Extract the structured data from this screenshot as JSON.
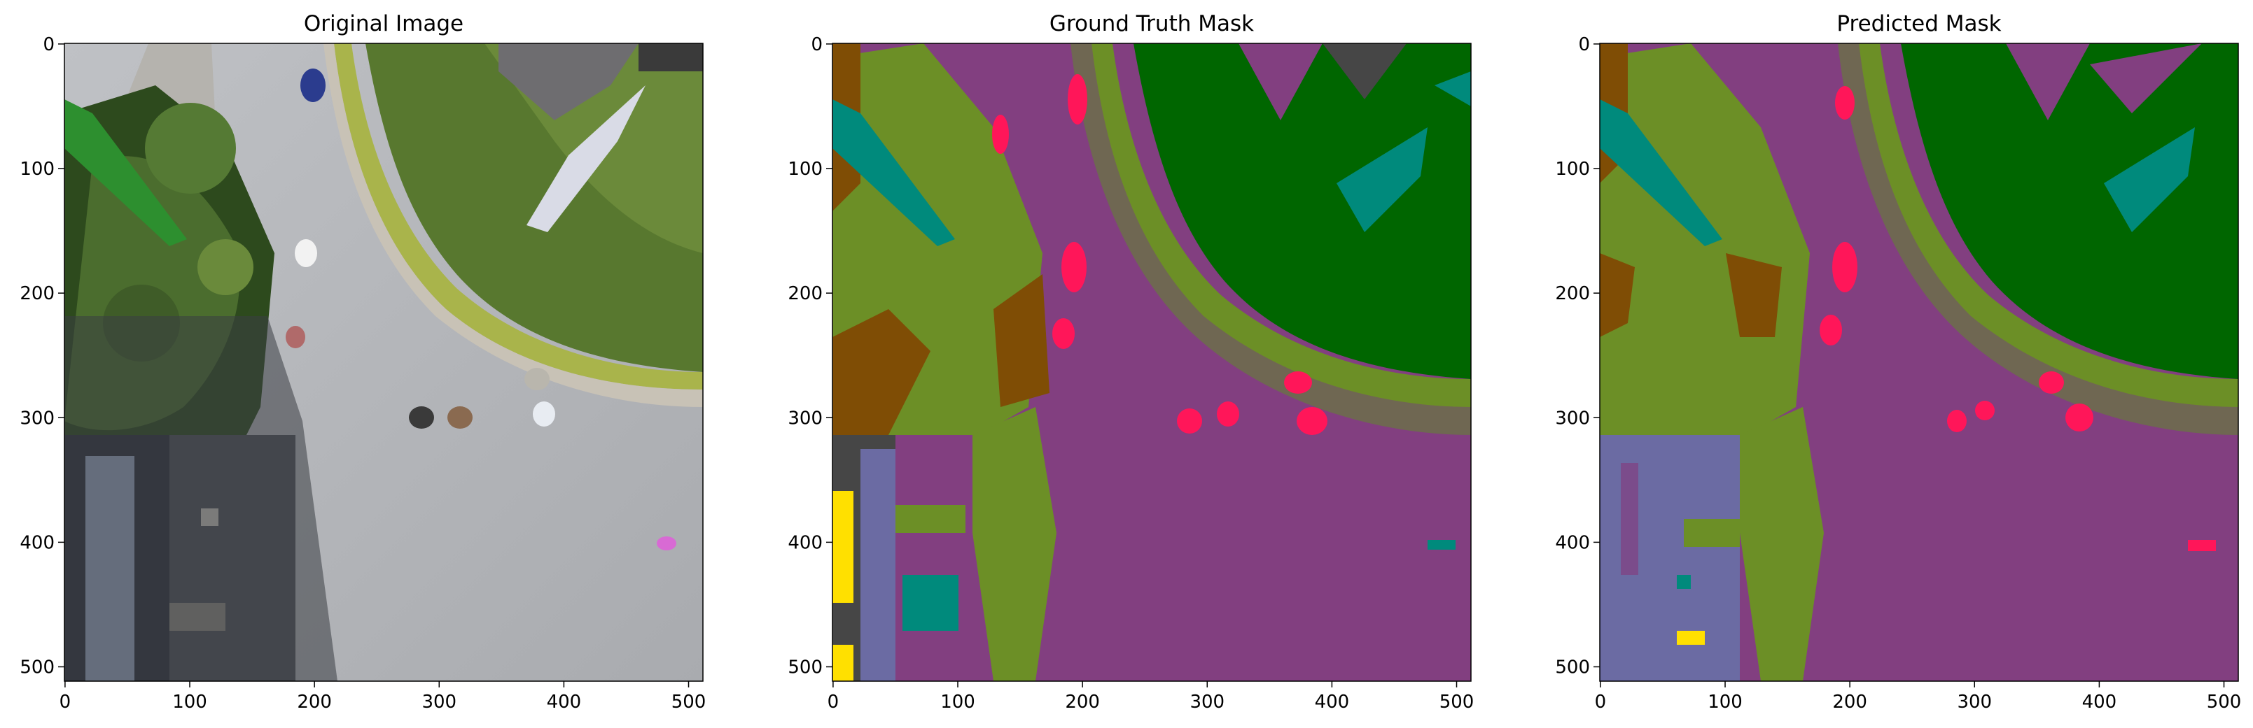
{
  "figure": {
    "panels": [
      {
        "title": "Original Image",
        "x_ticks": [
          "0",
          "100",
          "200",
          "300",
          "400",
          "500"
        ],
        "y_ticks": [
          "0",
          "100",
          "200",
          "300",
          "400",
          "500"
        ]
      },
      {
        "title": "Ground Truth Mask",
        "x_ticks": [
          "0",
          "100",
          "200",
          "300",
          "400",
          "500"
        ],
        "y_ticks": [
          "0",
          "100",
          "200",
          "300",
          "400",
          "500"
        ]
      },
      {
        "title": "Predicted Mask",
        "x_ticks": [
          "0",
          "100",
          "200",
          "300",
          "400",
          "500"
        ],
        "y_ticks": [
          "0",
          "100",
          "200",
          "300",
          "400",
          "500"
        ]
      }
    ]
  },
  "colors": {
    "paved_area": "#823f80",
    "vegetation": "#6c8f26",
    "grass": "#006600",
    "gravel": "#6f6752",
    "dirt": "#7f4d05",
    "tree": "#008a7c",
    "person": "#ff1659",
    "roof": "#6b6ba3",
    "wall": "#464646",
    "obstacle": "#ffe000"
  }
}
